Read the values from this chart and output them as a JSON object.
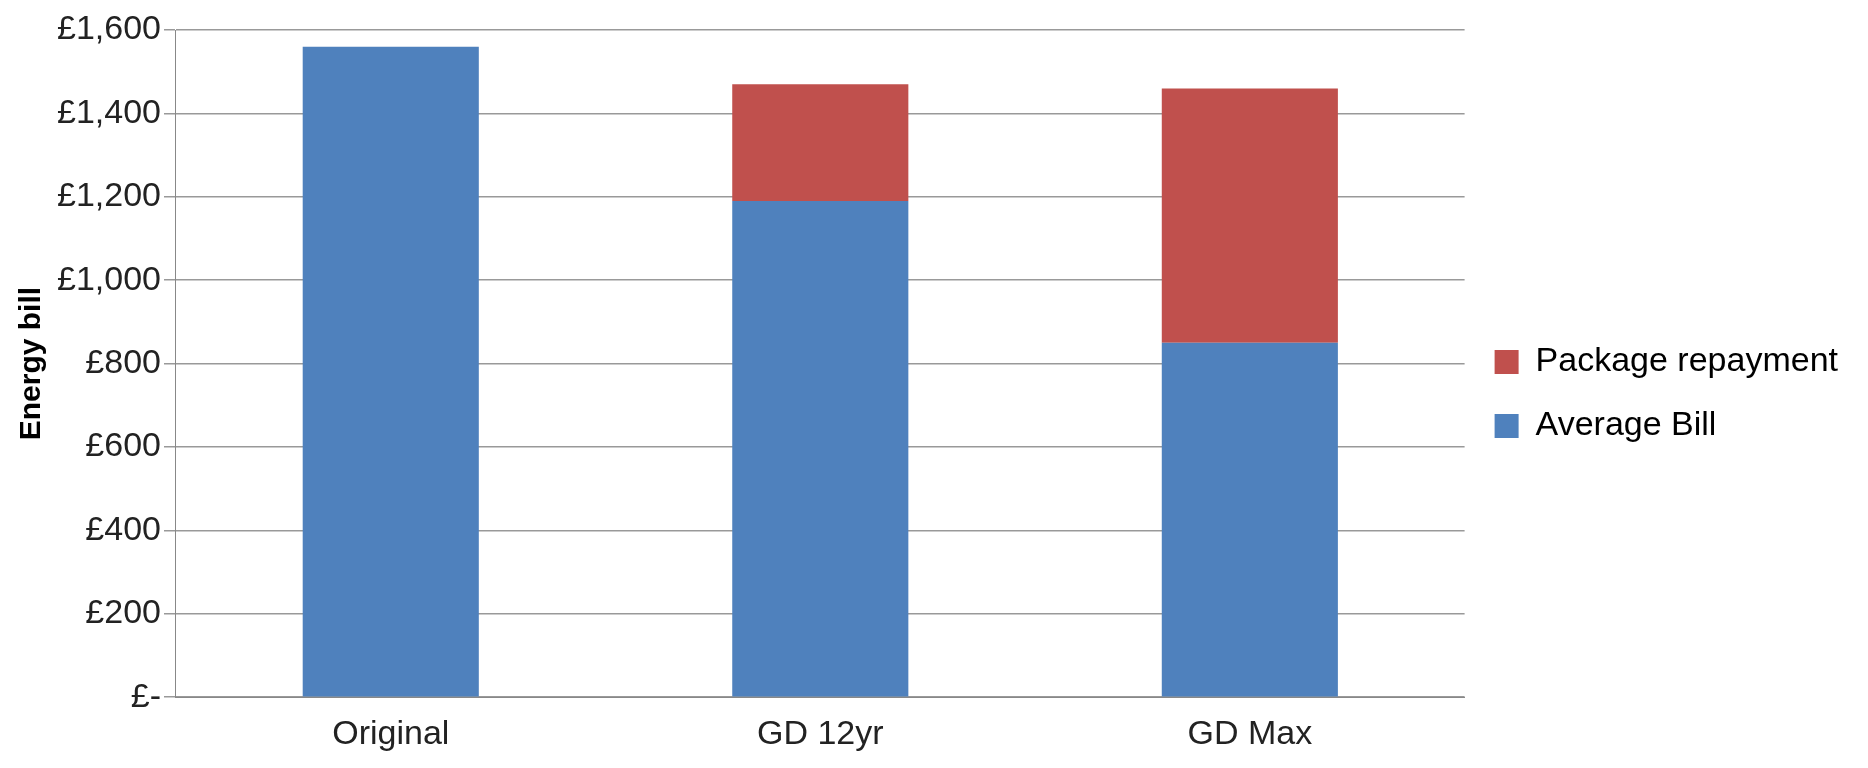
{
  "chart_data": {
    "type": "bar",
    "ylabel": "Energy bill",
    "categories": [
      "Original",
      "GD 12yr",
      "GD Max"
    ],
    "stacked": true,
    "series": [
      {
        "name": "Average Bill",
        "color": "#4f81bd",
        "values": [
          1560,
          1190,
          850
        ]
      },
      {
        "name": "Package repayment",
        "color": "#c0504d",
        "values": [
          null,
          280,
          610
        ]
      }
    ],
    "ylim": [
      0,
      1600
    ],
    "yticks": [
      {
        "value": 0,
        "label": "£-"
      },
      {
        "value": 200,
        "label": "£200"
      },
      {
        "value": 400,
        "label": "£400"
      },
      {
        "value": 600,
        "label": "£600"
      },
      {
        "value": 800,
        "label": "£800"
      },
      {
        "value": 1000,
        "label": "£1,000"
      },
      {
        "value": 1200,
        "label": "£1,200"
      },
      {
        "value": 1400,
        "label": "£1,400"
      },
      {
        "value": 1600,
        "label": "£1,600"
      }
    ],
    "grid": "y",
    "legend": "right"
  }
}
